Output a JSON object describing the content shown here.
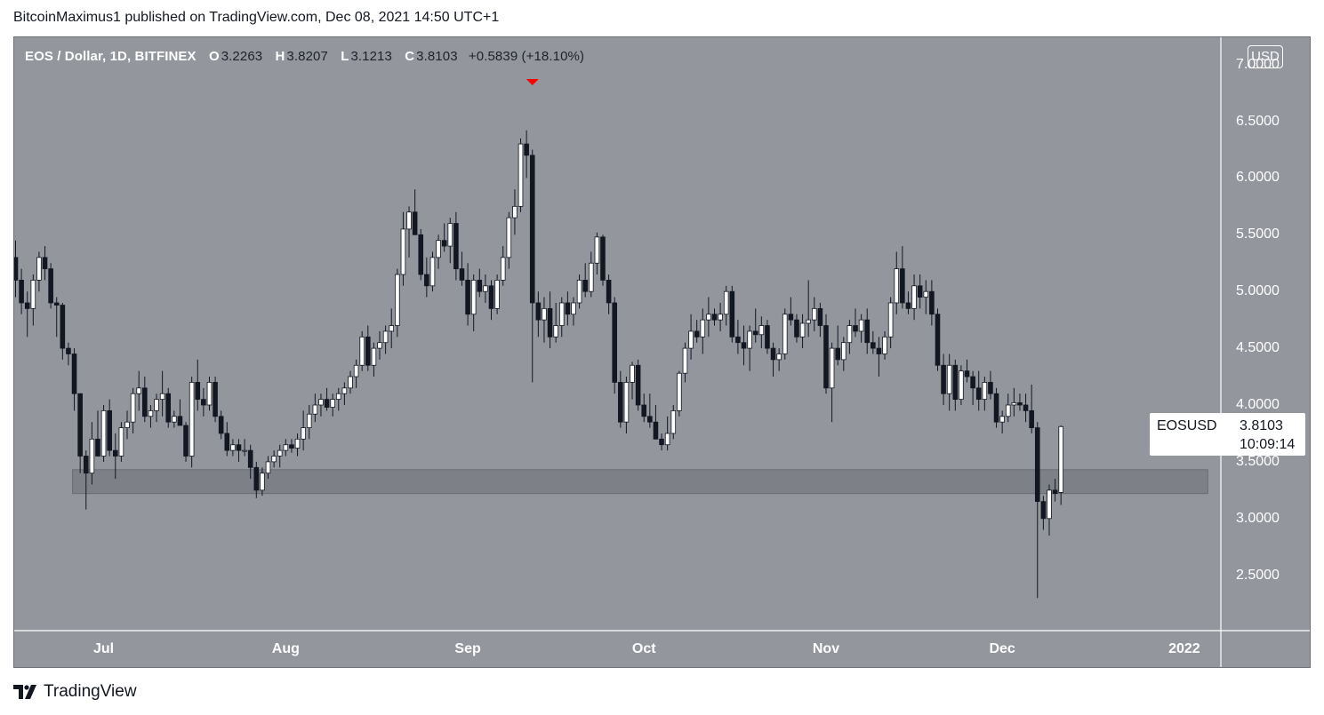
{
  "header": {
    "published_line": "BitcoinMaximus1 published on TradingView.com, Dec 08, 2021 14:50 UTC+1"
  },
  "legend": {
    "symbol": "EOS / Dollar, 1D, BITFINEX",
    "open_key": "O",
    "open_val": "3.2263",
    "high_key": "H",
    "high_val": "3.8207",
    "low_key": "L",
    "low_val": "3.1213",
    "close_key": "C",
    "close_val": "3.8103",
    "change": "+0.5839 (+18.10%)"
  },
  "currency_badge": "USD",
  "price_tag": {
    "symbol": "EOSUSD",
    "price": "3.8103",
    "countdown": "10:09:14"
  },
  "footer": {
    "brand": "TradingView"
  },
  "colors": {
    "background": "#94969e",
    "candle_up": "#ffffff",
    "candle_down": "#131722",
    "support_zone": "#7a7c82",
    "marker": "#ff0000"
  },
  "chart_data": {
    "type": "candlestick",
    "ylim": [
      2.0,
      7.0
    ],
    "y_ticks": [
      "2.5000",
      "3.0000",
      "3.5000",
      "4.0000",
      "4.5000",
      "5.0000",
      "5.5000",
      "6.0000",
      "6.5000",
      "7.0000"
    ],
    "x_ticks": [
      {
        "label": "Jul",
        "day": 15
      },
      {
        "label": "Aug",
        "day": 46
      },
      {
        "label": "Sep",
        "day": 77
      },
      {
        "label": "Oct",
        "day": 107
      },
      {
        "label": "Nov",
        "day": 138
      },
      {
        "label": "Dec",
        "day": 168
      },
      {
        "label": "2022",
        "day": 199
      }
    ],
    "support_zone": {
      "low": 3.22,
      "high": 3.43,
      "from_day": 10,
      "to_day": 203
    },
    "top_marker_day": 88,
    "candles": [
      [
        5.3,
        5.45,
        4.95,
        5.1
      ],
      [
        5.1,
        5.2,
        4.8,
        4.9
      ],
      [
        4.9,
        5.0,
        4.6,
        4.85
      ],
      [
        4.85,
        5.15,
        4.7,
        5.1
      ],
      [
        5.1,
        5.35,
        5.0,
        5.3
      ],
      [
        5.3,
        5.4,
        5.1,
        5.2
      ],
      [
        5.2,
        5.25,
        4.85,
        4.9
      ],
      [
        4.9,
        4.95,
        4.6,
        4.88
      ],
      [
        4.88,
        4.9,
        4.4,
        4.5
      ],
      [
        4.5,
        4.55,
        4.35,
        4.45
      ],
      [
        4.45,
        4.5,
        3.95,
        4.1
      ],
      [
        4.1,
        4.1,
        3.4,
        3.55
      ],
      [
        3.55,
        3.6,
        3.08,
        3.4
      ],
      [
        3.4,
        3.85,
        3.3,
        3.7
      ],
      [
        3.7,
        3.95,
        3.55,
        3.55
      ],
      [
        3.55,
        4.0,
        3.5,
        3.95
      ],
      [
        3.95,
        4.05,
        3.55,
        3.6
      ],
      [
        3.6,
        3.75,
        3.35,
        3.55
      ],
      [
        3.55,
        3.85,
        3.5,
        3.8
      ],
      [
        3.8,
        3.95,
        3.7,
        3.85
      ],
      [
        3.85,
        4.15,
        3.75,
        4.1
      ],
      [
        4.1,
        4.3,
        3.95,
        4.15
      ],
      [
        4.15,
        4.25,
        3.85,
        3.9
      ],
      [
        3.9,
        4.0,
        3.8,
        3.95
      ],
      [
        3.95,
        4.1,
        3.85,
        4.05
      ],
      [
        4.05,
        4.3,
        3.9,
        4.1
      ],
      [
        4.1,
        4.15,
        3.8,
        3.85
      ],
      [
        3.85,
        3.95,
        3.8,
        3.9
      ],
      [
        3.9,
        4.05,
        3.85,
        3.82
      ],
      [
        3.82,
        3.85,
        3.5,
        3.55
      ],
      [
        3.55,
        4.25,
        3.45,
        4.2
      ],
      [
        4.2,
        4.4,
        3.95,
        4.05
      ],
      [
        4.05,
        4.15,
        3.9,
        4.0
      ],
      [
        4.0,
        4.25,
        3.95,
        4.2
      ],
      [
        4.2,
        4.25,
        3.85,
        3.9
      ],
      [
        3.9,
        3.95,
        3.7,
        3.75
      ],
      [
        3.75,
        3.85,
        3.55,
        3.6
      ],
      [
        3.6,
        3.7,
        3.55,
        3.65
      ],
      [
        3.65,
        3.7,
        3.5,
        3.6
      ],
      [
        3.6,
        3.7,
        3.55,
        3.6
      ],
      [
        3.6,
        3.65,
        3.35,
        3.45
      ],
      [
        3.45,
        3.5,
        3.18,
        3.25
      ],
      [
        3.25,
        3.45,
        3.2,
        3.4
      ],
      [
        3.4,
        3.55,
        3.35,
        3.5
      ],
      [
        3.5,
        3.6,
        3.45,
        3.55
      ],
      [
        3.55,
        3.65,
        3.45,
        3.6
      ],
      [
        3.6,
        3.7,
        3.55,
        3.65
      ],
      [
        3.65,
        3.7,
        3.58,
        3.62
      ],
      [
        3.62,
        3.75,
        3.55,
        3.7
      ],
      [
        3.7,
        3.95,
        3.6,
        3.8
      ],
      [
        3.8,
        4.0,
        3.7,
        3.92
      ],
      [
        3.92,
        4.1,
        3.85,
        4.0
      ],
      [
        4.0,
        4.1,
        3.9,
        4.05
      ],
      [
        4.05,
        4.15,
        3.95,
        3.98
      ],
      [
        3.98,
        4.1,
        3.9,
        4.05
      ],
      [
        4.05,
        4.15,
        3.95,
        4.1
      ],
      [
        4.1,
        4.2,
        4.0,
        4.15
      ],
      [
        4.15,
        4.3,
        4.1,
        4.25
      ],
      [
        4.25,
        4.4,
        4.15,
        4.35
      ],
      [
        4.35,
        4.65,
        4.3,
        4.6
      ],
      [
        4.6,
        4.7,
        4.3,
        4.35
      ],
      [
        4.35,
        4.55,
        4.25,
        4.5
      ],
      [
        4.5,
        4.65,
        4.4,
        4.55
      ],
      [
        4.55,
        4.7,
        4.45,
        4.65
      ],
      [
        4.65,
        4.85,
        4.5,
        4.7
      ],
      [
        4.7,
        5.2,
        4.6,
        5.15
      ],
      [
        5.15,
        5.7,
        5.05,
        5.55
      ],
      [
        5.55,
        5.75,
        5.3,
        5.7
      ],
      [
        5.7,
        5.9,
        5.5,
        5.5
      ],
      [
        5.5,
        5.55,
        5.1,
        5.15
      ],
      [
        5.15,
        5.3,
        4.95,
        5.05
      ],
      [
        5.05,
        5.35,
        5.0,
        5.3
      ],
      [
        5.3,
        5.5,
        5.2,
        5.45
      ],
      [
        5.45,
        5.6,
        5.35,
        5.4
      ],
      [
        5.4,
        5.65,
        5.25,
        5.6
      ],
      [
        5.6,
        5.7,
        5.1,
        5.2
      ],
      [
        5.2,
        5.35,
        5.05,
        5.1
      ],
      [
        5.1,
        5.25,
        4.7,
        4.8
      ],
      [
        4.8,
        5.15,
        4.65,
        5.1
      ],
      [
        5.1,
        5.2,
        4.95,
        5.0
      ],
      [
        5.0,
        5.15,
        4.9,
        5.05
      ],
      [
        5.05,
        5.1,
        4.75,
        4.85
      ],
      [
        4.85,
        5.15,
        4.8,
        5.1
      ],
      [
        5.1,
        5.4,
        5.05,
        5.3
      ],
      [
        5.3,
        5.7,
        5.2,
        5.65
      ],
      [
        5.65,
        5.9,
        5.5,
        5.75
      ],
      [
        5.75,
        6.35,
        5.7,
        6.3
      ],
      [
        6.3,
        6.42,
        6.0,
        6.2
      ],
      [
        6.2,
        6.25,
        4.2,
        4.9
      ],
      [
        4.9,
        5.0,
        4.6,
        4.75
      ],
      [
        4.75,
        4.95,
        4.55,
        4.85
      ],
      [
        4.85,
        5.0,
        4.5,
        4.6
      ],
      [
        4.6,
        4.9,
        4.55,
        4.7
      ],
      [
        4.7,
        4.95,
        4.6,
        4.9
      ],
      [
        4.9,
        5.0,
        4.7,
        4.8
      ],
      [
        4.8,
        4.95,
        4.7,
        4.9
      ],
      [
        4.9,
        5.15,
        4.85,
        5.1
      ],
      [
        5.1,
        5.25,
        4.95,
        5.0
      ],
      [
        5.0,
        5.35,
        4.95,
        5.25
      ],
      [
        5.25,
        5.52,
        5.15,
        5.48
      ],
      [
        5.48,
        5.5,
        5.05,
        5.1
      ],
      [
        5.1,
        5.15,
        4.8,
        4.9
      ],
      [
        4.9,
        4.95,
        4.1,
        4.2
      ],
      [
        4.2,
        4.3,
        3.8,
        3.85
      ],
      [
        3.85,
        4.25,
        3.75,
        4.2
      ],
      [
        4.2,
        4.38,
        4.05,
        4.35
      ],
      [
        4.35,
        4.4,
        3.95,
        4.0
      ],
      [
        4.0,
        4.1,
        3.85,
        3.9
      ],
      [
        3.9,
        4.1,
        3.8,
        3.85
      ],
      [
        3.85,
        4.0,
        3.7,
        3.7
      ],
      [
        3.7,
        3.75,
        3.6,
        3.65
      ],
      [
        3.65,
        3.9,
        3.6,
        3.75
      ],
      [
        3.75,
        4.0,
        3.7,
        3.95
      ],
      [
        3.95,
        4.3,
        3.9,
        4.28
      ],
      [
        4.28,
        4.55,
        4.2,
        4.5
      ],
      [
        4.5,
        4.8,
        4.4,
        4.65
      ],
      [
        4.65,
        4.75,
        4.55,
        4.6
      ],
      [
        4.6,
        4.85,
        4.45,
        4.75
      ],
      [
        4.75,
        4.95,
        4.6,
        4.8
      ],
      [
        4.8,
        4.85,
        4.7,
        4.75
      ],
      [
        4.75,
        4.9,
        4.65,
        4.8
      ],
      [
        4.8,
        5.05,
        4.7,
        5.0
      ],
      [
        5.0,
        5.05,
        4.55,
        4.6
      ],
      [
        4.6,
        4.75,
        4.45,
        4.55
      ],
      [
        4.55,
        4.7,
        4.35,
        4.5
      ],
      [
        4.5,
        4.7,
        4.3,
        4.65
      ],
      [
        4.65,
        4.85,
        4.55,
        4.62
      ],
      [
        4.62,
        4.78,
        4.5,
        4.7
      ],
      [
        4.7,
        4.75,
        4.45,
        4.5
      ],
      [
        4.5,
        4.55,
        4.25,
        4.4
      ],
      [
        4.4,
        4.5,
        4.3,
        4.45
      ],
      [
        4.45,
        4.85,
        4.4,
        4.8
      ],
      [
        4.8,
        4.95,
        4.7,
        4.75
      ],
      [
        4.75,
        4.8,
        4.55,
        4.6
      ],
      [
        4.6,
        4.8,
        4.5,
        4.72
      ],
      [
        4.72,
        5.1,
        4.6,
        4.75
      ],
      [
        4.75,
        4.95,
        4.65,
        4.85
      ],
      [
        4.85,
        4.9,
        4.6,
        4.7
      ],
      [
        4.7,
        4.8,
        4.1,
        4.15
      ],
      [
        4.15,
        4.55,
        3.85,
        4.5
      ],
      [
        4.5,
        4.7,
        4.35,
        4.4
      ],
      [
        4.4,
        4.6,
        4.3,
        4.55
      ],
      [
        4.55,
        4.75,
        4.45,
        4.7
      ],
      [
        4.7,
        4.85,
        4.6,
        4.65
      ],
      [
        4.65,
        4.8,
        4.55,
        4.75
      ],
      [
        4.75,
        4.85,
        4.45,
        4.55
      ],
      [
        4.55,
        4.65,
        4.45,
        4.5
      ],
      [
        4.5,
        4.6,
        4.25,
        4.45
      ],
      [
        4.45,
        4.65,
        4.4,
        4.6
      ],
      [
        4.6,
        4.95,
        4.5,
        4.9
      ],
      [
        4.9,
        5.35,
        4.8,
        5.2
      ],
      [
        5.2,
        5.4,
        4.85,
        4.9
      ],
      [
        4.9,
        5.0,
        4.8,
        4.85
      ],
      [
        4.85,
        5.15,
        4.75,
        5.05
      ],
      [
        5.05,
        5.15,
        4.85,
        4.95
      ],
      [
        4.95,
        5.1,
        4.8,
        5.0
      ],
      [
        5.0,
        5.1,
        4.7,
        4.8
      ],
      [
        4.8,
        4.85,
        4.3,
        4.35
      ],
      [
        4.35,
        4.45,
        4.0,
        4.1
      ],
      [
        4.1,
        4.45,
        3.95,
        4.35
      ],
      [
        4.35,
        4.4,
        3.95,
        4.05
      ],
      [
        4.05,
        4.35,
        4.0,
        4.3
      ],
      [
        4.3,
        4.4,
        4.2,
        4.25
      ],
      [
        4.25,
        4.3,
        4.0,
        4.15
      ],
      [
        4.15,
        4.3,
        3.95,
        4.05
      ],
      [
        4.05,
        4.25,
        3.95,
        4.2
      ],
      [
        4.2,
        4.3,
        4.05,
        4.1
      ],
      [
        4.1,
        4.15,
        3.8,
        3.85
      ],
      [
        3.85,
        3.95,
        3.75,
        3.9
      ],
      [
        3.9,
        4.1,
        3.85,
        4.0
      ],
      [
        4.0,
        4.15,
        3.9,
        4.02
      ],
      [
        4.02,
        4.1,
        3.95,
        4.0
      ],
      [
        4.0,
        4.1,
        3.85,
        3.95
      ],
      [
        3.95,
        4.18,
        3.75,
        3.8
      ],
      [
        3.8,
        3.85,
        2.3,
        3.15
      ],
      [
        3.15,
        3.2,
        2.9,
        3.0
      ],
      [
        3.0,
        3.3,
        2.85,
        3.25
      ],
      [
        3.25,
        3.35,
        3.15,
        3.22
      ],
      [
        3.23,
        3.82,
        3.12,
        3.81
      ]
    ]
  }
}
